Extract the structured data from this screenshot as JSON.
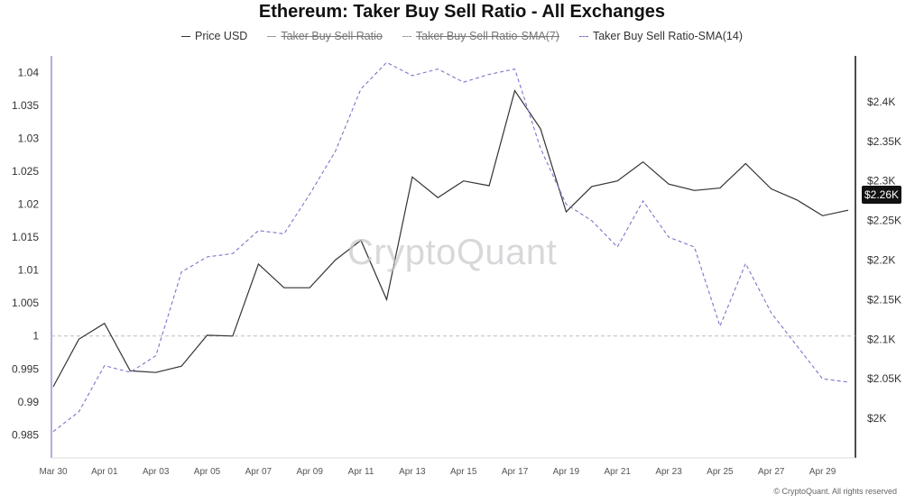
{
  "title": "Ethereum: Taker Buy Sell Ratio - All Exchanges",
  "legend": [
    {
      "label": "Price USD",
      "enabled": true,
      "style": "solid"
    },
    {
      "label": "Taker Buy Sell Ratio",
      "enabled": false,
      "style": "solid"
    },
    {
      "label": "Taker Buy Sell Ratio-SMA(7)",
      "enabled": false,
      "style": "dashed"
    },
    {
      "label": "Taker Buy Sell Ratio-SMA(14)",
      "enabled": true,
      "style": "dashed"
    }
  ],
  "watermark": "CryptoQuant",
  "copyright": "© CryptoQuant. All rights reserved",
  "price_badge": "$2.26K",
  "colors": {
    "price": "#333333",
    "sma14": "#7b74c9",
    "axis_accent": "#9b8fd8",
    "reference": "#bdbdbd"
  },
  "chart_data": {
    "type": "line",
    "title": "Ethereum: Taker Buy Sell Ratio - All Exchanges",
    "x": [
      "Mar 30",
      "Mar 31",
      "Apr 01",
      "Apr 02",
      "Apr 03",
      "Apr 04",
      "Apr 05",
      "Apr 06",
      "Apr 07",
      "Apr 08",
      "Apr 09",
      "Apr 10",
      "Apr 11",
      "Apr 12",
      "Apr 13",
      "Apr 14",
      "Apr 15",
      "Apr 16",
      "Apr 17",
      "Apr 18",
      "Apr 19",
      "Apr 20",
      "Apr 21",
      "Apr 22",
      "Apr 23",
      "Apr 24",
      "Apr 25",
      "Apr 26",
      "Apr 27",
      "Apr 28",
      "Apr 29",
      "Apr 30"
    ],
    "x_tick_labels": [
      "Mar 30",
      "Apr 01",
      "Apr 03",
      "Apr 05",
      "Apr 07",
      "Apr 09",
      "Apr 11",
      "Apr 13",
      "Apr 15",
      "Apr 17",
      "Apr 19",
      "Apr 21",
      "Apr 23",
      "Apr 25",
      "Apr 27",
      "Apr 29"
    ],
    "y_left": {
      "ticks": [
        "0.985",
        "0.99",
        "0.995",
        "1",
        "1.005",
        "1.01",
        "1.015",
        "1.02",
        "1.025",
        "1.03",
        "1.035",
        "1.04"
      ],
      "range": [
        0.9815,
        1.0425
      ]
    },
    "y_right": {
      "ticks": [
        "$2K",
        "$2.05K",
        "$2.1K",
        "$2.15K",
        "$2.2K",
        "$2.25K",
        "$2.3K",
        "$2.35K",
        "$2.4K"
      ],
      "range": [
        1950,
        2458
      ]
    },
    "reference_line": {
      "axis": "left",
      "value": 1.0
    },
    "series": [
      {
        "name": "Price USD",
        "axis": "right",
        "style": "solid",
        "values": [
          2040,
          2100,
          2120,
          2060,
          2058,
          2066,
          2105,
          2104,
          2195,
          2165,
          2165,
          2200,
          2225,
          2150,
          2305,
          2279,
          2300,
          2294,
          2414,
          2366,
          2261,
          2293,
          2300,
          2324,
          2296,
          2288,
          2291,
          2322,
          2290,
          2276,
          2256,
          2263
        ]
      },
      {
        "name": "Taker Buy Sell Ratio-SMA(14)",
        "axis": "left",
        "style": "dashed",
        "values": [
          0.9855,
          0.9885,
          0.9955,
          0.9945,
          0.997,
          1.0097,
          1.012,
          1.0125,
          1.016,
          1.0155,
          1.0215,
          1.028,
          1.0375,
          1.0415,
          1.0395,
          1.0405,
          1.0385,
          1.0397,
          1.0405,
          1.0285,
          1.02,
          1.0175,
          1.0135,
          1.0205,
          1.015,
          1.0135,
          1.0015,
          1.011,
          1.0035,
          0.9985,
          0.9935,
          0.993
        ]
      }
    ]
  }
}
